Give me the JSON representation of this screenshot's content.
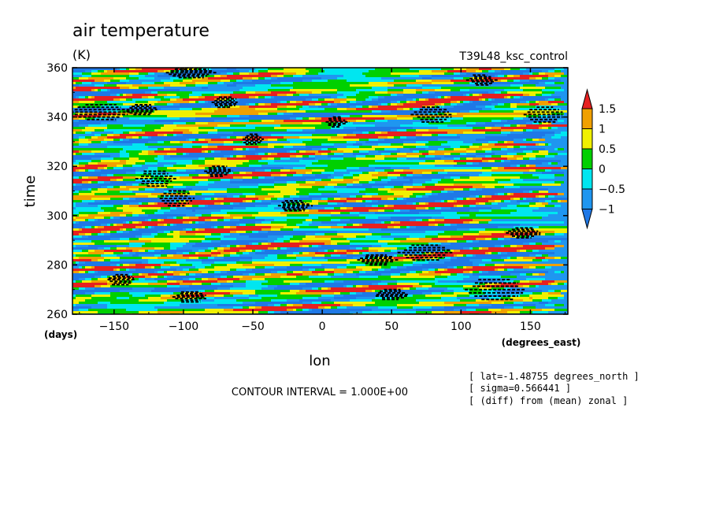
{
  "chart_data": {
    "type": "heatmap",
    "title": "air temperature",
    "units": "(K)",
    "run_label": "T39L48_ksc_control",
    "xlabel": "lon",
    "xunits": "(degrees_east)",
    "ylabel": "time",
    "yunits": "(days)",
    "xlim": [
      -180,
      177
    ],
    "ylim": [
      260,
      360
    ],
    "xticks": [
      -150,
      -100,
      -50,
      0,
      50,
      100,
      150
    ],
    "yticks": [
      260,
      280,
      300,
      320,
      340,
      360
    ],
    "colorbar": {
      "levels": [
        -1,
        -0.5,
        0,
        0.5,
        1,
        1.5
      ],
      "level_labels": [
        "-1",
        "-0.5",
        "0",
        "0.5",
        "1",
        "1.5"
      ],
      "colors": [
        "#1f78e6",
        "#1f96f0",
        "#00e6f0",
        "#00d000",
        "#f0f000",
        "#f0a000",
        "#e62020"
      ]
    },
    "pattern": "banded noisy field with predominantly horizontal (zonal) streaks; black hatched patches mark lowest values",
    "contour_interval": "CONTOUR INTERVAL = 1.000E+00",
    "annotations": [
      "[ lat=-1.48755 degrees_north ]",
      "[ sigma=0.566441 ]",
      "[ (diff) from (mean) zonal ]"
    ]
  }
}
